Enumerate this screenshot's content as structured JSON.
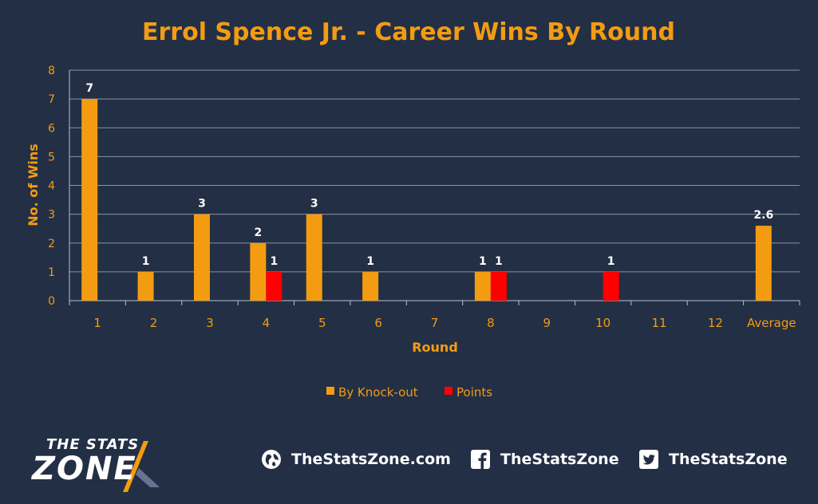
{
  "chart_data": {
    "type": "bar",
    "title": "Errol Spence Jr. - Career Wins By Round",
    "xlabel": "Round",
    "ylabel": "No. of Wins",
    "ylim": [
      0,
      8
    ],
    "yticks": [
      "0",
      "1",
      "2",
      "3",
      "4",
      "5",
      "6",
      "7",
      "8"
    ],
    "grid": true,
    "legend_position": "bottom",
    "categories": [
      "1",
      "2",
      "3",
      "4",
      "5",
      "6",
      "7",
      "8",
      "9",
      "10",
      "11",
      "12",
      "Average"
    ],
    "series": [
      {
        "name": "By Knock-out",
        "color": "#f39c12",
        "values": [
          7,
          1,
          3,
          2,
          3,
          1,
          null,
          1,
          null,
          null,
          null,
          null,
          2.6
        ],
        "labels": [
          "7",
          "1",
          "3",
          "2",
          "3",
          "1",
          "",
          "1",
          "",
          "",
          "",
          "",
          "2.6"
        ]
      },
      {
        "name": "Points",
        "color": "#ff0000",
        "values": [
          null,
          null,
          null,
          1,
          null,
          null,
          null,
          1,
          null,
          1,
          null,
          null,
          null
        ],
        "labels": [
          "",
          "",
          "",
          "1",
          "",
          "",
          "",
          "1",
          "",
          "1",
          "",
          "",
          ""
        ]
      }
    ]
  },
  "footer": {
    "logo_top": "THE STATS",
    "logo_bottom": "ZONE",
    "website": "TheStatsZone.com",
    "facebook": "TheStatsZone",
    "twitter": "TheStatsZone",
    "icons": [
      "globe-icon",
      "facebook-icon",
      "twitter-icon"
    ]
  },
  "colors": {
    "background": "#232f45",
    "accent": "#f39c12",
    "points": "#ff0000",
    "gridline": "#8a93a3"
  }
}
